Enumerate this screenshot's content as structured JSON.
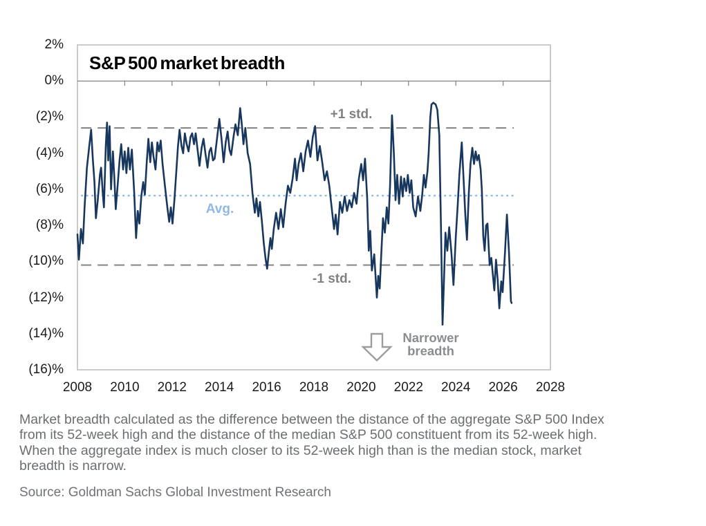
{
  "chart_data": {
    "type": "line",
    "title": "S&P 500 market breadth",
    "xlabel": "",
    "ylabel": "",
    "x_range": [
      2008,
      2028
    ],
    "y_range": [
      -16,
      2
    ],
    "grid": "off",
    "legend": "none",
    "y_ticks": [
      {
        "label": "2%",
        "value": 2
      },
      {
        "label": "0%",
        "value": 0
      },
      {
        "label": "(2)%",
        "value": -2
      },
      {
        "label": "(4)%",
        "value": -4
      },
      {
        "label": "(6)%",
        "value": -6
      },
      {
        "label": "(8)%",
        "value": -8
      },
      {
        "label": "(10)%",
        "value": -10
      },
      {
        "label": "(12)%",
        "value": -12
      },
      {
        "label": "(14)%",
        "value": -14
      },
      {
        "label": "(16)%",
        "value": -16
      }
    ],
    "x_ticks": [
      {
        "label": "2008",
        "year": 2008
      },
      {
        "label": "2010",
        "year": 2010
      },
      {
        "label": "2012",
        "year": 2012
      },
      {
        "label": "2014",
        "year": 2014
      },
      {
        "label": "2016",
        "year": 2016
      },
      {
        "label": "2018",
        "year": 2018
      },
      {
        "label": "2020",
        "year": 2020
      },
      {
        "label": "2022",
        "year": 2022
      },
      {
        "label": "2024",
        "year": 2024
      },
      {
        "label": "2026",
        "year": 2026
      },
      {
        "label": "2028",
        "year": 2028
      }
    ],
    "ref_lines": [
      {
        "label": "+1 std.",
        "value": -2.6,
        "style": "dashed",
        "color": "#808080"
      },
      {
        "label": "Avg.",
        "value": -6.35,
        "style": "dotted",
        "color": "#8FB9E6"
      },
      {
        "label": "-1 std.",
        "value": -10.2,
        "style": "dashed",
        "color": "#808080"
      }
    ],
    "annotation": {
      "arrow": "down-block-arrow",
      "line1": "Narrower",
      "line2": "breadth"
    },
    "series": [
      {
        "name": "S&P 500 market breadth",
        "color": "#17375E",
        "points": [
          [
            2008.0,
            -8.5
          ],
          [
            2008.06,
            -9.9
          ],
          [
            2008.15,
            -8.2
          ],
          [
            2008.23,
            -9.0
          ],
          [
            2008.3,
            -7.0
          ],
          [
            2008.4,
            -4.8
          ],
          [
            2008.5,
            -3.6
          ],
          [
            2008.58,
            -2.7
          ],
          [
            2008.65,
            -4.3
          ],
          [
            2008.72,
            -5.6
          ],
          [
            2008.78,
            -7.6
          ],
          [
            2008.85,
            -6.7
          ],
          [
            2008.95,
            -5.2
          ],
          [
            2009.0,
            -4.8
          ],
          [
            2009.07,
            -6.2
          ],
          [
            2009.12,
            -7.0
          ],
          [
            2009.2,
            -3.6
          ],
          [
            2009.25,
            -2.3
          ],
          [
            2009.3,
            -4.4
          ],
          [
            2009.36,
            -2.5
          ],
          [
            2009.42,
            -6.0
          ],
          [
            2009.5,
            -3.9
          ],
          [
            2009.56,
            -5.4
          ],
          [
            2009.62,
            -7.1
          ],
          [
            2009.7,
            -5.8
          ],
          [
            2009.78,
            -4.4
          ],
          [
            2009.85,
            -3.5
          ],
          [
            2009.93,
            -4.9
          ],
          [
            2010.0,
            -3.9
          ],
          [
            2010.07,
            -5.1
          ],
          [
            2010.15,
            -3.7
          ],
          [
            2010.22,
            -4.9
          ],
          [
            2010.3,
            -3.8
          ],
          [
            2010.4,
            -6.2
          ],
          [
            2010.48,
            -8.7
          ],
          [
            2010.55,
            -7.2
          ],
          [
            2010.62,
            -7.9
          ],
          [
            2010.7,
            -6.4
          ],
          [
            2010.78,
            -5.6
          ],
          [
            2010.85,
            -6.3
          ],
          [
            2010.93,
            -4.5
          ],
          [
            2011.0,
            -3.2
          ],
          [
            2011.08,
            -4.5
          ],
          [
            2011.15,
            -3.4
          ],
          [
            2011.22,
            -4.2
          ],
          [
            2011.3,
            -4.9
          ],
          [
            2011.38,
            -3.4
          ],
          [
            2011.45,
            -3.9
          ],
          [
            2011.52,
            -3.3
          ],
          [
            2011.6,
            -4.6
          ],
          [
            2011.7,
            -5.8
          ],
          [
            2011.8,
            -7.0
          ],
          [
            2011.88,
            -7.8
          ],
          [
            2011.95,
            -7.0
          ],
          [
            2012.02,
            -7.9
          ],
          [
            2012.1,
            -6.6
          ],
          [
            2012.18,
            -5.0
          ],
          [
            2012.25,
            -3.6
          ],
          [
            2012.32,
            -2.7
          ],
          [
            2012.4,
            -3.6
          ],
          [
            2012.47,
            -4.0
          ],
          [
            2012.54,
            -2.9
          ],
          [
            2012.62,
            -3.5
          ],
          [
            2012.7,
            -3.9
          ],
          [
            2012.78,
            -3.1
          ],
          [
            2012.85,
            -2.9
          ],
          [
            2012.93,
            -3.5
          ],
          [
            2013.0,
            -2.9
          ],
          [
            2013.08,
            -3.8
          ],
          [
            2013.16,
            -4.7
          ],
          [
            2013.25,
            -3.7
          ],
          [
            2013.33,
            -3.2
          ],
          [
            2013.42,
            -4.1
          ],
          [
            2013.5,
            -4.8
          ],
          [
            2013.58,
            -3.9
          ],
          [
            2013.65,
            -3.7
          ],
          [
            2013.73,
            -4.4
          ],
          [
            2013.8,
            -4.3
          ],
          [
            2013.9,
            -3.2
          ],
          [
            2014.0,
            -2.1
          ],
          [
            2014.1,
            -3.3
          ],
          [
            2014.18,
            -4.5
          ],
          [
            2014.27,
            -3.4
          ],
          [
            2014.35,
            -2.8
          ],
          [
            2014.43,
            -3.8
          ],
          [
            2014.5,
            -4.1
          ],
          [
            2014.6,
            -3.1
          ],
          [
            2014.68,
            -2.4
          ],
          [
            2014.78,
            -3.0
          ],
          [
            2014.88,
            -1.5
          ],
          [
            2014.95,
            -2.4
          ],
          [
            2015.02,
            -3.5
          ],
          [
            2015.1,
            -2.6
          ],
          [
            2015.2,
            -4.0
          ],
          [
            2015.3,
            -4.6
          ],
          [
            2015.4,
            -6.2
          ],
          [
            2015.5,
            -7.3
          ],
          [
            2015.57,
            -6.5
          ],
          [
            2015.65,
            -7.5
          ],
          [
            2015.72,
            -6.7
          ],
          [
            2015.8,
            -7.8
          ],
          [
            2015.88,
            -9.0
          ],
          [
            2015.95,
            -9.8
          ],
          [
            2016.02,
            -10.4
          ],
          [
            2016.1,
            -9.4
          ],
          [
            2016.16,
            -8.7
          ],
          [
            2016.22,
            -9.3
          ],
          [
            2016.3,
            -8.2
          ],
          [
            2016.4,
            -7.3
          ],
          [
            2016.5,
            -8.2
          ],
          [
            2016.6,
            -7.1
          ],
          [
            2016.7,
            -8.1
          ],
          [
            2016.8,
            -6.8
          ],
          [
            2016.9,
            -5.8
          ],
          [
            2017.0,
            -6.2
          ],
          [
            2017.1,
            -5.4
          ],
          [
            2017.2,
            -4.3
          ],
          [
            2017.27,
            -5.5
          ],
          [
            2017.35,
            -4.6
          ],
          [
            2017.45,
            -4.0
          ],
          [
            2017.55,
            -5.0
          ],
          [
            2017.65,
            -3.9
          ],
          [
            2017.75,
            -3.3
          ],
          [
            2017.85,
            -4.2
          ],
          [
            2017.95,
            -3.1
          ],
          [
            2018.05,
            -2.5
          ],
          [
            2018.15,
            -4.4
          ],
          [
            2018.25,
            -3.6
          ],
          [
            2018.35,
            -4.5
          ],
          [
            2018.45,
            -5.5
          ],
          [
            2018.55,
            -5.0
          ],
          [
            2018.65,
            -5.8
          ],
          [
            2018.75,
            -7.0
          ],
          [
            2018.85,
            -8.2
          ],
          [
            2018.92,
            -7.4
          ],
          [
            2019.0,
            -8.5
          ],
          [
            2019.1,
            -6.7
          ],
          [
            2019.2,
            -7.3
          ],
          [
            2019.3,
            -6.4
          ],
          [
            2019.4,
            -7.2
          ],
          [
            2019.5,
            -6.6
          ],
          [
            2019.6,
            -7.0
          ],
          [
            2019.7,
            -6.2
          ],
          [
            2019.8,
            -6.8
          ],
          [
            2019.9,
            -5.4
          ],
          [
            2020.0,
            -4.6
          ],
          [
            2020.08,
            -5.5
          ],
          [
            2020.16,
            -4.3
          ],
          [
            2020.25,
            -6.5
          ],
          [
            2020.32,
            -9.4
          ],
          [
            2020.38,
            -8.3
          ],
          [
            2020.45,
            -10.5
          ],
          [
            2020.55,
            -9.6
          ],
          [
            2020.66,
            -12.0
          ],
          [
            2020.72,
            -10.8
          ],
          [
            2020.78,
            -11.5
          ],
          [
            2020.85,
            -9.5
          ],
          [
            2020.92,
            -7.6
          ],
          [
            2021.0,
            -8.4
          ],
          [
            2021.08,
            -7.0
          ],
          [
            2021.15,
            -7.9
          ],
          [
            2021.22,
            -5.8
          ],
          [
            2021.3,
            -1.9
          ],
          [
            2021.38,
            -4.0
          ],
          [
            2021.45,
            -6.6
          ],
          [
            2021.52,
            -5.2
          ],
          [
            2021.6,
            -6.8
          ],
          [
            2021.68,
            -5.3
          ],
          [
            2021.75,
            -6.4
          ],
          [
            2021.82,
            -5.4
          ],
          [
            2021.9,
            -6.1
          ],
          [
            2021.97,
            -5.2
          ],
          [
            2022.05,
            -6.2
          ],
          [
            2022.12,
            -5.5
          ],
          [
            2022.2,
            -7.0
          ],
          [
            2022.3,
            -7.5
          ],
          [
            2022.4,
            -6.4
          ],
          [
            2022.5,
            -7.2
          ],
          [
            2022.58,
            -6.3
          ],
          [
            2022.65,
            -5.2
          ],
          [
            2022.72,
            -5.9
          ],
          [
            2022.8,
            -5.0
          ],
          [
            2022.85,
            -4.0
          ],
          [
            2022.92,
            -2.0
          ],
          [
            2022.97,
            -1.3
          ],
          [
            2023.05,
            -1.2
          ],
          [
            2023.15,
            -1.3
          ],
          [
            2023.22,
            -1.6
          ],
          [
            2023.3,
            -3.0
          ],
          [
            2023.37,
            -8.0
          ],
          [
            2023.44,
            -13.5
          ],
          [
            2023.5,
            -11.0
          ],
          [
            2023.56,
            -8.4
          ],
          [
            2023.64,
            -9.4
          ],
          [
            2023.72,
            -8.1
          ],
          [
            2023.82,
            -9.6
          ],
          [
            2023.9,
            -11.3
          ],
          [
            2024.0,
            -8.6
          ],
          [
            2024.08,
            -6.9
          ],
          [
            2024.15,
            -5.2
          ],
          [
            2024.25,
            -3.4
          ],
          [
            2024.33,
            -5.5
          ],
          [
            2024.4,
            -7.4
          ],
          [
            2024.47,
            -8.8
          ],
          [
            2024.55,
            -6.2
          ],
          [
            2024.62,
            -4.6
          ],
          [
            2024.7,
            -3.7
          ],
          [
            2024.77,
            -4.6
          ],
          [
            2024.84,
            -3.9
          ],
          [
            2024.9,
            -4.4
          ],
          [
            2024.97,
            -4.1
          ],
          [
            2025.05,
            -4.9
          ],
          [
            2025.1,
            -6.0
          ],
          [
            2025.16,
            -8.6
          ],
          [
            2025.22,
            -9.4
          ],
          [
            2025.28,
            -8.0
          ],
          [
            2025.34,
            -7.9
          ],
          [
            2025.43,
            -10.2
          ],
          [
            2025.5,
            -9.8
          ],
          [
            2025.63,
            -11.6
          ],
          [
            2025.7,
            -9.9
          ],
          [
            2025.77,
            -11.0
          ],
          [
            2025.84,
            -12.6
          ],
          [
            2025.92,
            -11.1
          ],
          [
            2025.98,
            -11.7
          ],
          [
            2026.08,
            -9.5
          ],
          [
            2026.16,
            -7.4
          ],
          [
            2026.25,
            -9.5
          ],
          [
            2026.33,
            -12.2
          ],
          [
            2026.36,
            -12.3
          ]
        ]
      }
    ]
  },
  "footnote": {
    "lines": [
      "Market breadth calculated as the difference between the distance of the aggregate S&P 500 Index",
      "from its 52-week high and the distance of the median S&P 500 constituent from its 52-week high.",
      "When the aggregate index is much closer to its 52-week high than is the median stock, market",
      "breadth is narrow."
    ]
  },
  "footer": {
    "source": "Source: Goldman Sachs Global Investment Research"
  }
}
